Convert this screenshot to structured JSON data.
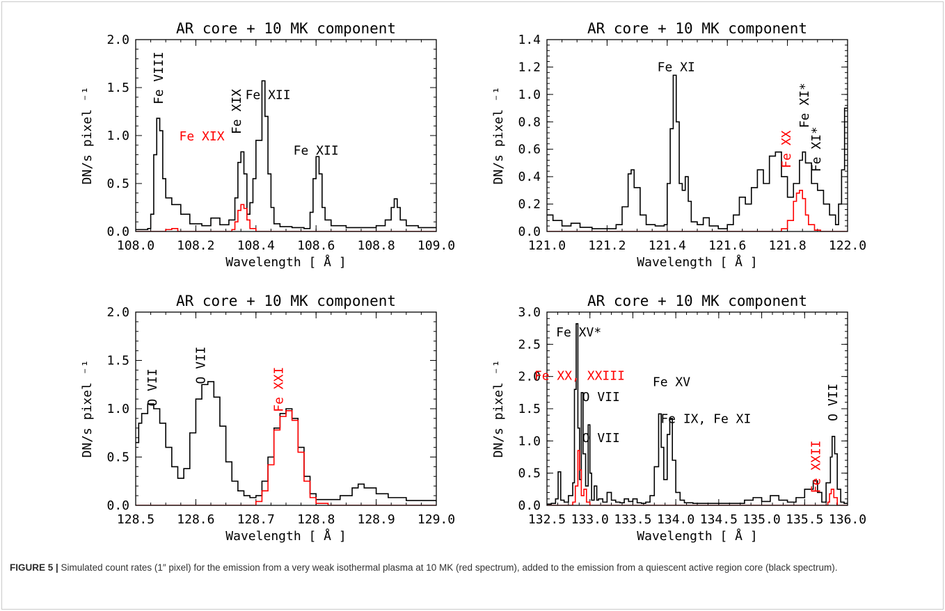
{
  "colors": {
    "core": "#000000",
    "hot": "#ff0000",
    "caption_text": "#333333"
  },
  "caption": {
    "label": "FIGURE 5 |",
    "text": " Simulated count rates (1″ pixel) for the emission from a very weak isothermal plasma at 10 MK (red spectrum), added to the emission from a quiescent active region core (black spectrum)."
  },
  "chart_data": [
    {
      "type": "line",
      "title": "AR core + 10 MK component",
      "xlabel": "Wavelength [ Å ]",
      "ylabel": "DN/s  pixel ⁻¹",
      "xlim": [
        108.0,
        109.0
      ],
      "ylim": [
        0.0,
        2.0
      ],
      "xticks": [
        108.0,
        108.2,
        108.4,
        108.6,
        108.8,
        109.0
      ],
      "xtick_labels": [
        "108.0",
        "108.2",
        "108.4",
        "108.6",
        "108.8",
        "109.0"
      ],
      "yticks": [
        0.0,
        0.5,
        1.0,
        1.5,
        2.0
      ],
      "ytick_labels": [
        "0.0",
        "0.5",
        "1.0",
        "1.5",
        "2.0"
      ],
      "series": [
        {
          "color": "#000000",
          "x": [
            108.0,
            108.02,
            108.04,
            108.05,
            108.06,
            108.07,
            108.08,
            108.09,
            108.1,
            108.12,
            108.15,
            108.18,
            108.22,
            108.25,
            108.28,
            108.31,
            108.33,
            108.34,
            108.35,
            108.36,
            108.37,
            108.38,
            108.39,
            108.4,
            108.42,
            108.43,
            108.44,
            108.45,
            108.46,
            108.48,
            108.52,
            108.56,
            108.58,
            108.59,
            108.6,
            108.61,
            108.62,
            108.63,
            108.65,
            108.7,
            108.75,
            108.8,
            108.83,
            108.85,
            108.86,
            108.87,
            108.88,
            108.9,
            108.94,
            108.97,
            109.0
          ],
          "y": [
            0.02,
            0.02,
            0.03,
            0.18,
            0.8,
            1.18,
            1.05,
            0.55,
            0.35,
            0.28,
            0.18,
            0.08,
            0.06,
            0.14,
            0.07,
            0.12,
            0.35,
            0.72,
            0.83,
            0.6,
            0.18,
            0.3,
            0.55,
            0.95,
            1.57,
            1.2,
            0.6,
            0.25,
            0.08,
            0.05,
            0.04,
            0.03,
            0.2,
            0.55,
            0.78,
            0.6,
            0.25,
            0.12,
            0.06,
            0.04,
            0.04,
            0.06,
            0.12,
            0.25,
            0.34,
            0.25,
            0.12,
            0.06,
            0.04,
            0.04,
            0.04
          ]
        },
        {
          "color": "#ff0000",
          "x": [
            108.0,
            108.08,
            108.1,
            108.12,
            108.14,
            108.3,
            108.32,
            108.33,
            108.34,
            108.35,
            108.36,
            108.37,
            108.38,
            108.4,
            109.0
          ],
          "y": [
            0.0,
            0.0,
            0.02,
            0.03,
            0.0,
            0.0,
            0.02,
            0.1,
            0.22,
            0.28,
            0.24,
            0.12,
            0.03,
            0.0,
            0.0
          ]
        }
      ],
      "annotations": [
        {
          "text": "Fe VIII",
          "x": 108.09,
          "y": 1.6,
          "rotate": true,
          "color": "#000000"
        },
        {
          "text": "Fe XIX",
          "x": 108.35,
          "y": 1.25,
          "rotate": true,
          "color": "#000000"
        },
        {
          "text": "Fe XII",
          "x": 108.44,
          "y": 1.38,
          "rotate": false,
          "color": "#000000"
        },
        {
          "text": "Fe XIX",
          "x": 108.22,
          "y": 0.95,
          "rotate": false,
          "color": "#ff0000"
        },
        {
          "text": "Fe XII",
          "x": 108.6,
          "y": 0.8,
          "rotate": false,
          "color": "#000000"
        }
      ]
    },
    {
      "type": "line",
      "title": "AR core + 10 MK component",
      "xlabel": "Wavelength [ Å ]",
      "ylabel": "DN/s  pixel ⁻¹",
      "xlim": [
        121.0,
        122.0
      ],
      "ylim": [
        0.0,
        1.4
      ],
      "xticks": [
        121.0,
        121.2,
        121.4,
        121.6,
        121.8,
        122.0
      ],
      "xtick_labels": [
        "121.0",
        "121.2",
        "121.4",
        "121.6",
        "121.8",
        "122.0"
      ],
      "yticks": [
        0.0,
        0.2,
        0.4,
        0.6,
        0.8,
        1.0,
        1.2,
        1.4
      ],
      "ytick_labels": [
        "0.0",
        "0.2",
        "0.4",
        "0.6",
        "0.8",
        "1.0",
        "1.2",
        "1.4"
      ],
      "series": [
        {
          "color": "#000000",
          "x": [
            121.0,
            121.02,
            121.05,
            121.08,
            121.11,
            121.15,
            121.2,
            121.23,
            121.25,
            121.27,
            121.28,
            121.29,
            121.31,
            121.33,
            121.36,
            121.39,
            121.4,
            121.41,
            121.42,
            121.43,
            121.44,
            121.45,
            121.46,
            121.47,
            121.48,
            121.5,
            121.52,
            121.54,
            121.57,
            121.6,
            121.62,
            121.64,
            121.66,
            121.68,
            121.7,
            121.72,
            121.74,
            121.76,
            121.78,
            121.8,
            121.82,
            121.84,
            121.85,
            121.86,
            121.88,
            121.9,
            121.92,
            121.94,
            121.96,
            121.97,
            121.98,
            121.99,
            122.0
          ],
          "y": [
            0.12,
            0.08,
            0.04,
            0.06,
            0.03,
            0.02,
            0.02,
            0.05,
            0.18,
            0.42,
            0.45,
            0.32,
            0.12,
            0.05,
            0.04,
            0.05,
            0.35,
            0.75,
            1.14,
            0.8,
            0.35,
            0.3,
            0.4,
            0.22,
            0.07,
            0.05,
            0.1,
            0.04,
            0.02,
            0.05,
            0.12,
            0.25,
            0.2,
            0.32,
            0.45,
            0.35,
            0.55,
            0.58,
            0.4,
            0.25,
            0.35,
            0.52,
            0.58,
            0.5,
            0.35,
            0.3,
            0.2,
            0.12,
            0.05,
            0.2,
            0.45,
            0.9,
            0.9
          ]
        },
        {
          "color": "#ff0000",
          "x": [
            121.0,
            121.76,
            121.78,
            121.8,
            121.82,
            121.83,
            121.84,
            121.85,
            121.86,
            121.87,
            121.89,
            121.91,
            122.0
          ],
          "y": [
            0.0,
            0.0,
            0.02,
            0.08,
            0.22,
            0.28,
            0.3,
            0.24,
            0.12,
            0.05,
            0.01,
            0.0,
            0.0
          ]
        }
      ],
      "annotations": [
        {
          "text": "Fe XI",
          "x": 121.43,
          "y": 1.17,
          "rotate": false,
          "color": "#000000"
        },
        {
          "text": "Fe XI*",
          "x": 121.87,
          "y": 0.92,
          "rotate": true,
          "color": "#000000"
        },
        {
          "text": "Fe XX",
          "x": 121.81,
          "y": 0.6,
          "rotate": true,
          "color": "#ff0000"
        },
        {
          "text": "Fe XI*",
          "x": 121.91,
          "y": 0.6,
          "rotate": true,
          "color": "#000000"
        }
      ]
    },
    {
      "type": "line",
      "title": "AR core + 10 MK component",
      "xlabel": "Wavelength [ Å ]",
      "ylabel": "DN/s  pixel ⁻¹",
      "xlim": [
        128.5,
        129.0
      ],
      "ylim": [
        0.0,
        2.0
      ],
      "xticks": [
        128.5,
        128.6,
        128.7,
        128.8,
        128.9,
        129.0
      ],
      "xtick_labels": [
        "128.5",
        "128.6",
        "128.7",
        "128.8",
        "128.9",
        "129.0"
      ],
      "yticks": [
        0.0,
        0.5,
        1.0,
        1.5,
        2.0
      ],
      "ytick_labels": [
        "0.0",
        "0.5",
        "1.0",
        "1.5",
        "2.0"
      ],
      "series": [
        {
          "color": "#000000",
          "x": [
            128.5,
            128.505,
            128.51,
            128.52,
            128.53,
            128.54,
            128.55,
            128.56,
            128.57,
            128.58,
            128.59,
            128.6,
            128.61,
            128.62,
            128.63,
            128.64,
            128.65,
            128.66,
            128.67,
            128.68,
            128.69,
            128.7,
            128.71,
            128.72,
            128.73,
            128.74,
            128.75,
            128.76,
            128.77,
            128.78,
            128.79,
            128.8,
            128.82,
            128.84,
            128.86,
            128.87,
            128.88,
            128.9,
            128.92,
            128.95,
            129.0
          ],
          "y": [
            0.65,
            0.85,
            0.95,
            1.05,
            1.0,
            0.85,
            0.6,
            0.4,
            0.28,
            0.38,
            0.75,
            1.1,
            1.25,
            1.28,
            1.12,
            0.82,
            0.45,
            0.25,
            0.15,
            0.1,
            0.08,
            0.1,
            0.25,
            0.5,
            0.8,
            0.95,
            1.0,
            0.9,
            0.6,
            0.3,
            0.12,
            0.06,
            0.06,
            0.1,
            0.18,
            0.22,
            0.18,
            0.12,
            0.08,
            0.05,
            0.04
          ]
        },
        {
          "color": "#ff0000",
          "x": [
            128.5,
            128.68,
            128.7,
            128.71,
            128.72,
            128.73,
            128.74,
            128.75,
            128.76,
            128.77,
            128.78,
            128.79,
            128.8,
            128.82,
            129.0
          ],
          "y": [
            0.0,
            0.0,
            0.04,
            0.15,
            0.42,
            0.78,
            0.92,
            0.98,
            0.88,
            0.55,
            0.25,
            0.08,
            0.02,
            0.0,
            0.0
          ]
        }
      ],
      "annotations": [
        {
          "text": "O VII",
          "x": 128.535,
          "y": 1.22,
          "rotate": true,
          "color": "#000000"
        },
        {
          "text": "O VII",
          "x": 128.615,
          "y": 1.45,
          "rotate": true,
          "color": "#000000"
        },
        {
          "text": "Fe XXI",
          "x": 128.745,
          "y": 1.2,
          "rotate": true,
          "color": "#ff0000"
        }
      ]
    },
    {
      "type": "line",
      "title": "AR core + 10 MK component",
      "xlabel": "Wavelength [ Å ]",
      "ylabel": "DN/s  pixel ⁻¹",
      "xlim": [
        132.5,
        136.0
      ],
      "ylim": [
        0.0,
        3.0
      ],
      "xticks": [
        132.5,
        133.0,
        133.5,
        134.0,
        134.5,
        135.0,
        135.5,
        136.0
      ],
      "xtick_labels": [
        "132.5",
        "133.0",
        "133.5",
        "134.0",
        "134.5",
        "135.0",
        "135.5",
        "136.0"
      ],
      "yticks": [
        0.0,
        0.5,
        1.0,
        1.5,
        2.0,
        2.5,
        3.0
      ],
      "ytick_labels": [
        "0.0",
        "0.5",
        "1.0",
        "1.5",
        "2.0",
        "2.5",
        "3.0"
      ],
      "series": [
        {
          "color": "#000000",
          "x": [
            132.5,
            132.55,
            132.6,
            132.63,
            132.66,
            132.7,
            132.75,
            132.8,
            132.82,
            132.84,
            132.86,
            132.88,
            132.9,
            132.92,
            132.95,
            132.98,
            133.0,
            133.02,
            133.05,
            133.08,
            133.1,
            133.15,
            133.2,
            133.25,
            133.3,
            133.35,
            133.4,
            133.45,
            133.5,
            133.55,
            133.6,
            133.65,
            133.7,
            133.75,
            133.8,
            133.83,
            133.86,
            133.9,
            133.93,
            133.96,
            134.0,
            134.05,
            134.1,
            134.2,
            134.4,
            134.6,
            134.8,
            134.9,
            135.0,
            135.1,
            135.2,
            135.3,
            135.4,
            135.5,
            135.6,
            135.65,
            135.7,
            135.75,
            135.8,
            135.82,
            135.85,
            135.88,
            135.92,
            135.96,
            136.0
          ],
          "y": [
            0.02,
            0.03,
            0.1,
            0.52,
            0.08,
            0.05,
            0.15,
            0.35,
            1.8,
            2.82,
            1.2,
            0.4,
            1.75,
            0.8,
            0.3,
            1.25,
            0.5,
            0.08,
            0.3,
            0.08,
            0.1,
            0.05,
            0.2,
            0.08,
            0.05,
            0.04,
            0.1,
            0.06,
            0.1,
            0.04,
            0.03,
            0.05,
            0.15,
            0.6,
            1.42,
            0.9,
            0.4,
            1.1,
            1.35,
            0.7,
            0.2,
            0.08,
            0.04,
            0.03,
            0.03,
            0.03,
            0.08,
            0.12,
            0.06,
            0.15,
            0.08,
            0.05,
            0.12,
            0.25,
            0.38,
            0.2,
            0.05,
            0.35,
            0.75,
            1.07,
            0.8,
            0.25,
            0.05,
            0.03,
            0.03
          ]
        },
        {
          "color": "#ff0000",
          "x": [
            132.5,
            132.76,
            132.8,
            132.83,
            132.86,
            132.88,
            132.9,
            132.93,
            132.96,
            133.0,
            135.74,
            135.77,
            135.79,
            135.81,
            135.84,
            135.88,
            136.0
          ],
          "y": [
            0.0,
            0.0,
            0.05,
            0.3,
            0.85,
            0.55,
            0.15,
            0.25,
            0.05,
            0.0,
            0.0,
            0.05,
            0.18,
            0.25,
            0.12,
            0.0,
            0.0
          ]
        }
      ],
      "annotations": [
        {
          "text": "Fe XV*",
          "x": 132.87,
          "y": 2.62,
          "rotate": false,
          "color": "#000000"
        },
        {
          "text": "Fe XX, XXIII",
          "x": 132.88,
          "y": 1.95,
          "rotate": false,
          "color": "#ff0000"
        },
        {
          "text": "O VII",
          "x": 133.13,
          "y": 1.62,
          "rotate": false,
          "color": "#000000"
        },
        {
          "text": "O VII",
          "x": 133.13,
          "y": 0.98,
          "rotate": false,
          "color": "#000000"
        },
        {
          "text": "Fe XV",
          "x": 133.95,
          "y": 1.85,
          "rotate": false,
          "color": "#000000"
        },
        {
          "text": "Fe IX, Fe XI",
          "x": 134.35,
          "y": 1.28,
          "rotate": false,
          "color": "#000000"
        },
        {
          "text": "O VII",
          "x": 135.88,
          "y": 1.6,
          "rotate": true,
          "color": "#000000"
        },
        {
          "text": "Fe XXII",
          "x": 135.68,
          "y": 0.6,
          "rotate": true,
          "color": "#ff0000"
        }
      ]
    }
  ]
}
